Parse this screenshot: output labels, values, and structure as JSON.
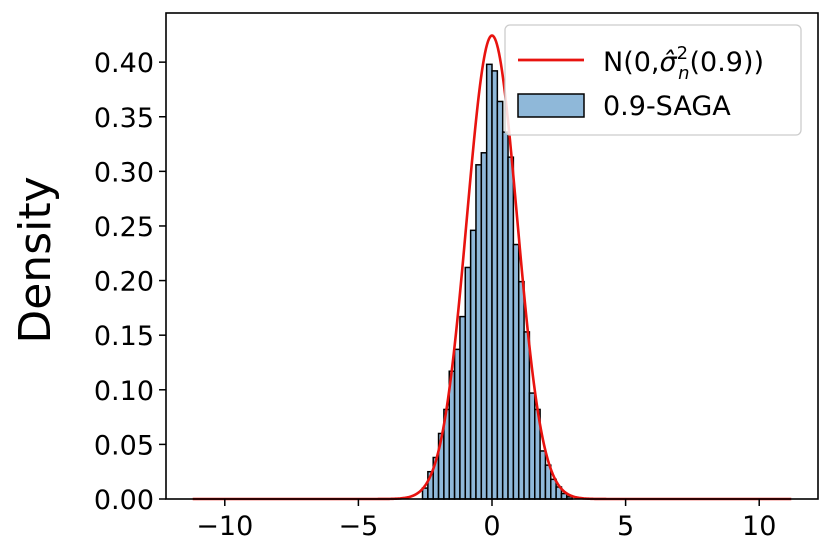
{
  "chart_data": {
    "type": "histogram",
    "title": "",
    "xlabel": "",
    "ylabel": "Density",
    "xlim": [
      -12.2,
      12.2
    ],
    "ylim": [
      0,
      0.445
    ],
    "x_ticks": [
      -10,
      -5,
      0,
      5,
      10
    ],
    "x_tick_labels": [
      "−10",
      "−5",
      "0",
      "5",
      "10"
    ],
    "y_ticks": [
      0.0,
      0.05,
      0.1,
      0.15,
      0.2,
      0.25,
      0.3,
      0.35,
      0.4
    ],
    "y_tick_labels": [
      "0.00",
      "0.05",
      "0.10",
      "0.15",
      "0.20",
      "0.25",
      "0.30",
      "0.35",
      "0.40"
    ],
    "grid": false,
    "legend_position": "top-right",
    "colors": {
      "bar_fill": "#8fb8d9",
      "bar_edge": "#000000",
      "curve": "#e8130f"
    },
    "series": [
      {
        "name": "N(0,σ̂²ₙ(0.9))",
        "legend_main": "N(0,",
        "legend_sigma": "σ̂",
        "legend_sup": "2",
        "legend_sub": "n",
        "legend_tail": "(0.9))",
        "kind": "line",
        "distribution": "normal",
        "mean": 0,
        "std": 0.94,
        "x_range": [
          -11.2,
          11.2
        ]
      },
      {
        "name": "0.9-SAGA",
        "kind": "histogram",
        "bin_width": 0.2,
        "bins": [
          {
            "x0": -2.6,
            "value": 0.01
          },
          {
            "x0": -2.4,
            "value": 0.025
          },
          {
            "x0": -2.2,
            "value": 0.038
          },
          {
            "x0": -2.0,
            "value": 0.06
          },
          {
            "x0": -1.8,
            "value": 0.082
          },
          {
            "x0": -1.6,
            "value": 0.117
          },
          {
            "x0": -1.4,
            "value": 0.137
          },
          {
            "x0": -1.2,
            "value": 0.167
          },
          {
            "x0": -1.0,
            "value": 0.212
          },
          {
            "x0": -0.8,
            "value": 0.246
          },
          {
            "x0": -0.6,
            "value": 0.306
          },
          {
            "x0": -0.4,
            "value": 0.317
          },
          {
            "x0": -0.2,
            "value": 0.398
          },
          {
            "x0": 0.0,
            "value": 0.392
          },
          {
            "x0": 0.2,
            "value": 0.364
          },
          {
            "x0": 0.4,
            "value": 0.336
          },
          {
            "x0": 0.6,
            "value": 0.313
          },
          {
            "x0": 0.8,
            "value": 0.233
          },
          {
            "x0": 1.0,
            "value": 0.199
          },
          {
            "x0": 1.2,
            "value": 0.153
          },
          {
            "x0": 1.4,
            "value": 0.097
          },
          {
            "x0": 1.6,
            "value": 0.082
          },
          {
            "x0": 1.8,
            "value": 0.044
          },
          {
            "x0": 2.0,
            "value": 0.031
          },
          {
            "x0": 2.2,
            "value": 0.018
          },
          {
            "x0": 2.4,
            "value": 0.011
          },
          {
            "x0": 2.6,
            "value": 0.005
          },
          {
            "x0": 2.8,
            "value": 0.002
          }
        ]
      }
    ]
  }
}
